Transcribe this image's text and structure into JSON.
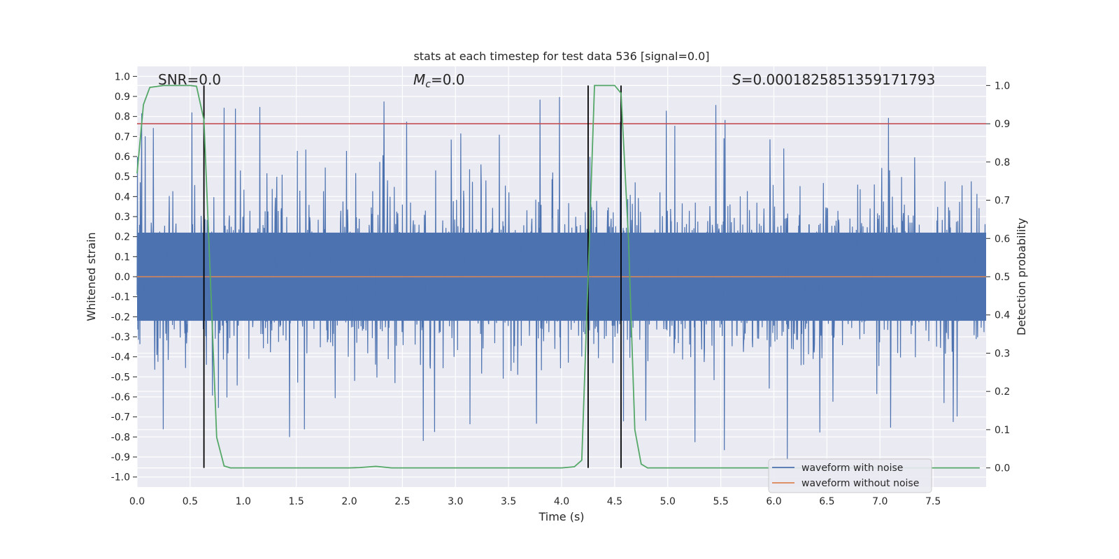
{
  "chart_data": {
    "type": "line",
    "title": "stats at each timestep for test data 536 [signal=0.0]",
    "xlabel": "Time (s)",
    "ylabel": "Whitened strain",
    "y2label": "Detection probability",
    "xlim": [
      0.0,
      8.0
    ],
    "ylim": [
      -1.05,
      1.05
    ],
    "y2lim": [
      -0.05,
      1.05
    ],
    "xticks": [
      "0.0",
      "0.5",
      "1.0",
      "1.5",
      "2.0",
      "2.5",
      "3.0",
      "3.5",
      "4.0",
      "4.5",
      "5.0",
      "5.5",
      "6.0",
      "6.5",
      "7.0",
      "7.5"
    ],
    "yticks": [
      "1.0",
      "0.9",
      "0.8",
      "0.7",
      "0.6",
      "0.5",
      "0.4",
      "0.3",
      "0.2",
      "0.1",
      "0.0",
      "-0.1",
      "-0.2",
      "-0.3",
      "-0.4",
      "-0.5",
      "-0.6",
      "-0.7",
      "-0.8",
      "-0.9",
      "-1.0"
    ],
    "y2ticks": [
      "1.0",
      "0.9",
      "0.8",
      "0.7",
      "0.6",
      "0.5",
      "0.4",
      "0.3",
      "0.2",
      "0.1",
      "0.0"
    ],
    "annotations": {
      "snr": "SNR=0.0",
      "mc_symbol": "M",
      "mc_sub": "c",
      "mc_value": "=0.0",
      "s_symbol": "S",
      "s_value": "=0.0001825851359171793"
    },
    "threshold": 0.9,
    "vertical_lines": [
      0.63,
      4.25,
      4.56
    ],
    "series": [
      {
        "name": "waveform with noise",
        "color": "#4c72b0",
        "axis": "left",
        "note": "dense whitened noise, roughly |y| < 0.6 with spikes up to 1.0"
      },
      {
        "name": "waveform without noise",
        "color": "#dd8452",
        "axis": "left",
        "values_x": [
          0.0,
          8.0
        ],
        "values_y": [
          0.0,
          0.0
        ]
      },
      {
        "name": "detection probability",
        "color": "#55a868",
        "axis": "right",
        "x": [
          0.0,
          0.06,
          0.12,
          0.25,
          0.38,
          0.5,
          0.56,
          0.63,
          0.69,
          0.75,
          0.82,
          0.88,
          1.0,
          1.5,
          2.0,
          2.1,
          2.25,
          2.4,
          2.6,
          3.0,
          3.5,
          4.0,
          4.12,
          4.19,
          4.25,
          4.31,
          4.38,
          4.5,
          4.56,
          4.63,
          4.69,
          4.75,
          4.81,
          4.88,
          5.0,
          6.0,
          7.0,
          7.94
        ],
        "y": [
          0.77,
          0.95,
          0.995,
          1.0,
          1.0,
          1.0,
          0.998,
          0.91,
          0.5,
          0.08,
          0.005,
          0.0,
          0.0,
          0.0,
          0.0,
          0.001,
          0.004,
          0.0,
          0.0,
          0.0,
          0.0,
          0.0,
          0.003,
          0.02,
          0.5,
          1.0,
          1.0,
          1.0,
          0.98,
          0.6,
          0.1,
          0.01,
          0.0,
          0.0,
          0.0,
          0.0,
          0.0,
          0.0
        ]
      },
      {
        "name": "threshold",
        "color": "#c44e52",
        "axis": "right",
        "values_x": [
          0.0,
          8.0
        ],
        "values_y": [
          0.9,
          0.9
        ]
      }
    ],
    "legend": {
      "placement": "lower-right",
      "entries": [
        "waveform with noise",
        "waveform without noise"
      ]
    }
  },
  "colors": {
    "plot_bg": "#eaeaf2",
    "grid": "#ffffff",
    "noise": "#4c72b0",
    "clean": "#dd8452",
    "prob": "#55a868",
    "threshold": "#c44e52",
    "vline": "#000000"
  }
}
